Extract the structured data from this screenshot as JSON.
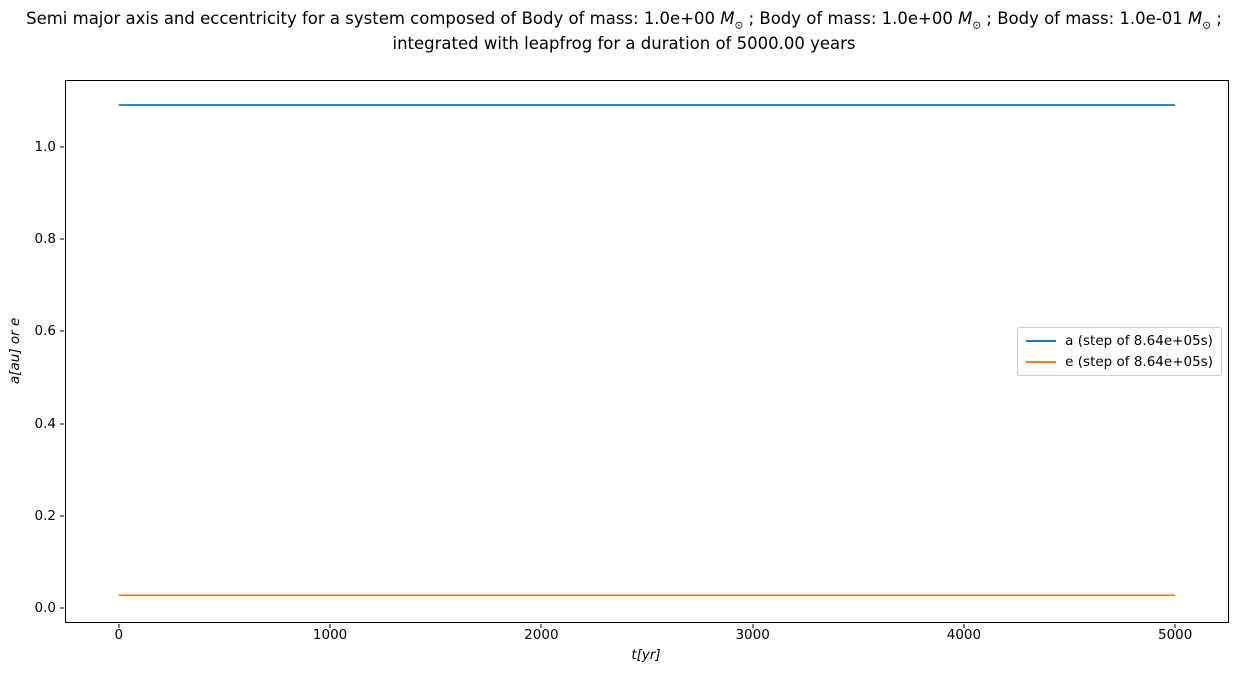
{
  "figure": {
    "background": "#ffffff",
    "title": {
      "line1_segments": [
        {
          "text": "Semi major axis and eccentricity for a system composed of Body of mass: 1.0e+00 "
        },
        {
          "var": "M",
          "sub": "⊙"
        },
        {
          "text": " ; Body of mass: 1.0e+00 "
        },
        {
          "var": "M",
          "sub": "⊙"
        },
        {
          "text": " ; Body of mass: 1.0e-01 "
        },
        {
          "var": "M",
          "sub": "⊙"
        },
        {
          "text": " ;"
        }
      ],
      "line2": "integrated with leapfrog for a duration of 5000.00 years"
    }
  },
  "axes": {
    "xlabel": "t[yr]",
    "ylabel": "a[au] or e",
    "x_tick_values": [
      0,
      1000,
      2000,
      3000,
      4000,
      5000
    ],
    "x_tick_labels": [
      "0",
      "1000",
      "2000",
      "3000",
      "4000",
      "5000"
    ],
    "y_tick_values": [
      0.0,
      0.2,
      0.4,
      0.6,
      0.8,
      1.0
    ],
    "y_tick_labels": [
      "0.0",
      "0.2",
      "0.4",
      "0.6",
      "0.8",
      "1.0"
    ],
    "spine_color": "#000000"
  },
  "legend": {
    "entries": [
      {
        "label": "a (step of 8.64e+05s)",
        "color": "#1f77b4"
      },
      {
        "label": "e (step of 8.64e+05s)",
        "color": "#ff7f0e"
      }
    ],
    "border_color": "#cccccc"
  },
  "chart_data": {
    "type": "line",
    "title": "Semi major axis and eccentricity for a system composed of Body of mass: 1.0e+00 M⊙ ; Body of mass: 1.0e+00 M⊙ ; Body of mass: 1.0e-01 M⊙ ; integrated with leapfrog for a duration of 5000.00 years",
    "xlabel": "t [yr]",
    "ylabel": "a [au] or e",
    "xlim": [
      -250,
      5250
    ],
    "ylim": [
      -0.03,
      1.143
    ],
    "grid": false,
    "legend_position": "center right",
    "x": [
      0,
      5000
    ],
    "series": [
      {
        "key": "a",
        "name": "a (step of 8.64e+05s)",
        "color": "#1f77b4",
        "values": [
          1.091,
          1.091
        ]
      },
      {
        "key": "e",
        "name": "e (step of 8.64e+05s)",
        "color": "#ff7f0e",
        "values": [
          0.028,
          0.028
        ]
      }
    ]
  }
}
